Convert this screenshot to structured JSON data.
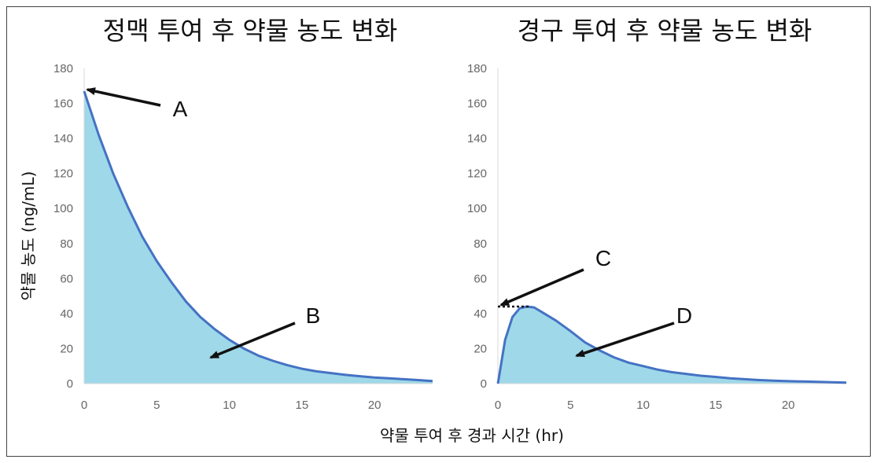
{
  "chart_data": [
    {
      "type": "area",
      "title": "정맥 투여 후 약물 농도 변화",
      "ylabel": "약물 농도 (ng/mL)",
      "xlim": [
        0,
        24
      ],
      "ylim": [
        0,
        180
      ],
      "xticks": [
        "0",
        "5",
        "10",
        "15",
        "20"
      ],
      "yticks": [
        "0",
        "20",
        "40",
        "60",
        "80",
        "100",
        "120",
        "140",
        "160",
        "180"
      ],
      "series": [
        {
          "x": [
            0,
            1,
            2,
            3,
            4,
            5,
            6,
            7,
            8,
            9,
            10,
            11,
            12,
            13,
            14,
            15,
            16,
            17,
            18,
            19,
            20,
            21,
            22,
            23,
            24
          ],
          "y": [
            167,
            142,
            120,
            101,
            84,
            70,
            58,
            47,
            38,
            31,
            25,
            20,
            16,
            13,
            10.5,
            8.5,
            7,
            6,
            5,
            4.2,
            3.5,
            3,
            2.5,
            2,
            1.5
          ]
        }
      ],
      "annotations": [
        {
          "label": "A",
          "target_x": 0,
          "target_y": 167
        },
        {
          "label": "B",
          "target_x": 8.5,
          "target_y": 14
        }
      ],
      "grid": false,
      "fill_color": "#9fd8e8",
      "line_color": "#4472c4"
    },
    {
      "type": "area",
      "title": "경구 투여 후 약물 농도 변화",
      "xlim": [
        0,
        24
      ],
      "ylim": [
        0,
        180
      ],
      "xticks": [
        "0",
        "5",
        "10",
        "15",
        "20"
      ],
      "yticks": [
        "0",
        "20",
        "40",
        "60",
        "80",
        "100",
        "120",
        "140",
        "160",
        "180"
      ],
      "series": [
        {
          "x": [
            0,
            0.5,
            1,
            1.5,
            2,
            2.5,
            3,
            4,
            5,
            6,
            7,
            8,
            9,
            10,
            11,
            12,
            13,
            14,
            15,
            16,
            17,
            18,
            19,
            20,
            21,
            22,
            23,
            24
          ],
          "y": [
            0,
            25,
            38,
            43,
            44,
            43.5,
            41,
            36,
            30,
            23.5,
            19,
            15,
            12,
            10,
            8,
            6.5,
            5.5,
            4.5,
            3.8,
            3,
            2.5,
            2,
            1.7,
            1.4,
            1.2,
            1,
            0.8,
            0.6
          ]
        }
      ],
      "annotations": [
        {
          "label": "C",
          "target_x": 0,
          "target_y": 44,
          "dotted_line": true
        },
        {
          "label": "D",
          "target_x": 5.2,
          "target_y": 15
        }
      ],
      "grid": false,
      "fill_color": "#9fd8e8",
      "line_color": "#4472c4"
    }
  ],
  "shared_xlabel": "약물 투여 후 경과 시간 (hr)"
}
